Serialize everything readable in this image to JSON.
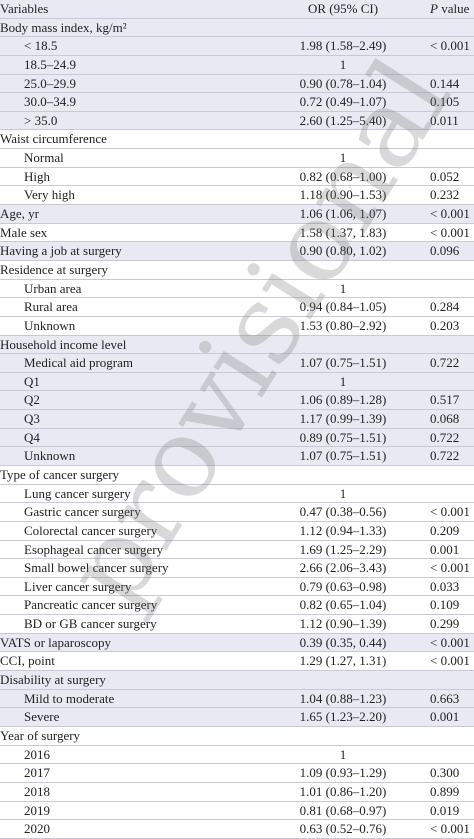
{
  "header": {
    "variables": "Variables",
    "or": "OR (95% CI)",
    "p_italic": "P",
    "p": "value"
  },
  "watermark": "provisional",
  "rows": [
    {
      "label": "Body mass index, kg/m²",
      "rows": [
        {
          "label": "< 18.5",
          "or": "1.98 (1.58–2.49)",
          "p": "< 0.001"
        },
        {
          "label": "18.5–24.9",
          "or": "1"
        },
        {
          "label": "25.0–29.9",
          "or": "0.90 (0.78–1.04)",
          "p": "0.144"
        },
        {
          "label": "30.0–34.9",
          "or": "0.72 (0.49–1.07)",
          "p": "0.105"
        },
        {
          "label": "> 35.0",
          "or": "2.60 (1.25–5.40)",
          "p": "0.011"
        }
      ]
    },
    {
      "label": "Waist circumference",
      "rows": [
        {
          "label": "Normal",
          "or": "1"
        },
        {
          "label": "High",
          "or": "0.82 (0.68–1.00)",
          "p": "0.052"
        },
        {
          "label": "Very high",
          "or": "1.18 (0.90–1.53)",
          "p": "0.232"
        }
      ]
    },
    {
      "label": "Age, yr",
      "or": "1.06 (1.06, 1.07)",
      "p": "< 0.001"
    },
    {
      "label": "Male sex",
      "or": "1.58 (1.37, 1.83)",
      "p": "< 0.001"
    },
    {
      "label": "Having a job at surgery",
      "or": "0.90 (0.80, 1.02)",
      "p": "0.096"
    },
    {
      "label": "Residence at surgery",
      "rows": [
        {
          "label": "Urban area",
          "or": "1"
        },
        {
          "label": "Rural area",
          "or": "0.94 (0.84–1.05)",
          "p": "0.284"
        },
        {
          "label": "Unknown",
          "or": "1.53 (0.80–2.92)",
          "p": "0.203"
        }
      ]
    },
    {
      "label": "Household income level",
      "rows": [
        {
          "label": "Medical aid program",
          "or": "1.07 (0.75–1.51)",
          "p": "0.722"
        },
        {
          "label": "Q1",
          "or": "1"
        },
        {
          "label": "Q2",
          "or": "1.06 (0.89–1.28)",
          "p": "0.517"
        },
        {
          "label": "Q3",
          "or": "1.17 (0.99–1.39)",
          "p": "0.068"
        },
        {
          "label": "Q4",
          "or": "0.89 (0.75–1.51)",
          "p": "0.722"
        },
        {
          "label": "Unknown",
          "or": "1.07 (0.75–1.51)",
          "p": "0.722"
        }
      ]
    },
    {
      "label": "Type of cancer surgery",
      "rows": [
        {
          "label": "Lung cancer surgery",
          "or": "1"
        },
        {
          "label": "Gastric cancer surgery",
          "or": "0.47 (0.38–0.56)",
          "p": "< 0.001"
        },
        {
          "label": "Colorectal cancer surgery",
          "or": "1.12 (0.94–1.33)",
          "p": "0.209"
        },
        {
          "label": "Esophageal cancer surgery",
          "or": "1.69 (1.25–2.29)",
          "p": "0.001"
        },
        {
          "label": "Small bowel cancer surgery",
          "or": "2.66 (2.06–3.43)",
          "p": "< 0.001"
        },
        {
          "label": "Liver cancer surgery",
          "or": "0.79 (0.63–0.98)",
          "p": "0.033"
        },
        {
          "label": "Pancreatic cancer surgery",
          "or": "0.82 (0.65–1.04)",
          "p": "0.109"
        },
        {
          "label": "BD or GB cancer surgery",
          "or": "1.12 (0.90–1.39)",
          "p": "0.299"
        }
      ]
    },
    {
      "label": "VATS or laparoscopy",
      "or": "0.39 (0.35, 0.44)",
      "p": "< 0.001"
    },
    {
      "label": "CCI, point",
      "or": "1.29 (1.27, 1.31)",
      "p": "< 0.001"
    },
    {
      "label": "Disability at surgery",
      "rows": [
        {
          "label": "Mild to moderate",
          "or": "1.04 (0.88–1.23)",
          "p": "0.663"
        },
        {
          "label": "Severe",
          "or": "1.65 (1.23–2.20)",
          "p": "0.001"
        }
      ]
    },
    {
      "label": "Year of surgery",
      "rows": [
        {
          "label": "2016",
          "or": "1"
        },
        {
          "label": "2017",
          "or": "1.09 (0.93–1.29)",
          "p": "0.300"
        },
        {
          "label": "2018",
          "or": "1.01 (0.86–1.20)",
          "p": "0.899"
        },
        {
          "label": "2019",
          "or": "0.81 (0.68–0.97)",
          "p": "0.019"
        },
        {
          "label": "2020",
          "or": "0.63 (0.52–0.76)",
          "p": "< 0.001"
        }
      ]
    }
  ]
}
